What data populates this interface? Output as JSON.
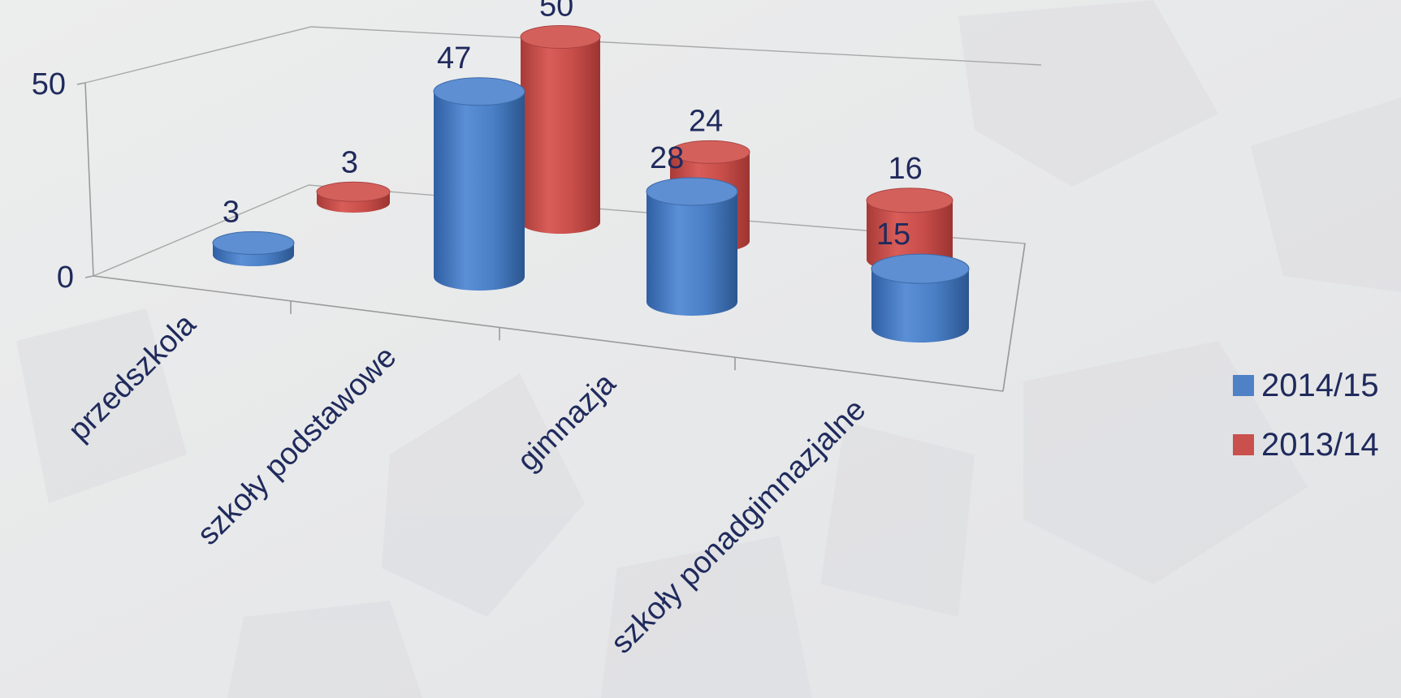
{
  "chart_data": {
    "type": "bar",
    "variant": "3d-cylinder",
    "title": "",
    "xlabel": "",
    "ylabel": "",
    "ylim": [
      0,
      50
    ],
    "yticks": [
      0,
      50
    ],
    "categories": [
      "przedszkola",
      "szkoły podstawowe",
      "gimnazja",
      "szkoły ponadgimnazjalne"
    ],
    "series": [
      {
        "name": "2014/15",
        "values": [
          3,
          47,
          28,
          15
        ],
        "color": "#4f81c7"
      },
      {
        "name": "2013/14",
        "values": [
          3,
          50,
          24,
          16
        ],
        "color": "#c9504d"
      }
    ],
    "legend": "right",
    "data_labels": true,
    "grid": false
  }
}
